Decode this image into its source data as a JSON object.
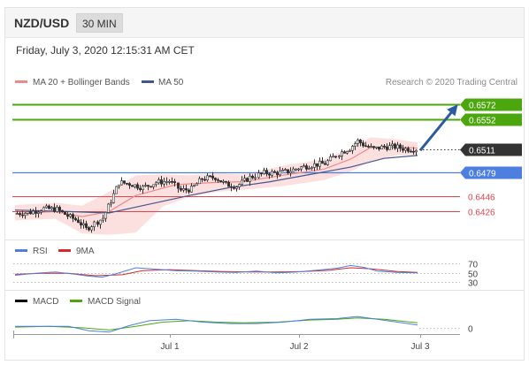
{
  "header": {
    "pair": "NZD/USD",
    "timeframe": "30 MIN"
  },
  "datetime": "Friday, July 3, 2020 12:15:31 AM CET",
  "legend": {
    "ma20_label": "MA 20 + Bollinger Bands",
    "ma50_label": "MA 50",
    "credit": "Research © 2020 Trading Central",
    "rsi_label": "RSI",
    "rsi_ma_label": "9MA",
    "macd_label": "MACD",
    "macd_signal_label": "MACD Signal"
  },
  "colors": {
    "resistance": "#4ca70f",
    "pivot": "#4d7fe0",
    "support": "#e0454d",
    "current": "#333333",
    "candle": "#333333",
    "ma20": "#f08a8a",
    "ma50": "#42568f",
    "band": "#fbdada",
    "arrow": "#2b5aa0"
  },
  "chart_data": [
    {
      "type": "candlestick",
      "series": "NZD/USD 30 MIN",
      "x_labels": [
        "Jul 1",
        "Jul 2",
        "Jul 3"
      ],
      "ylim": [
        0.6389,
        0.6593
      ],
      "levels": [
        {
          "value": 0.6572,
          "label": "0.6572",
          "kind": "resistance"
        },
        {
          "value": 0.6552,
          "label": "0.6552",
          "kind": "resistance"
        },
        {
          "value": 0.6511,
          "label": "0.6511",
          "kind": "current"
        },
        {
          "value": 0.6479,
          "label": "0.6479",
          "kind": "pivot"
        },
        {
          "value": 0.6446,
          "label": "0.6446",
          "kind": "support"
        },
        {
          "value": 0.6426,
          "label": "0.6426",
          "kind": "support"
        }
      ],
      "price_path": [
        [
          0,
          0.6422
        ],
        [
          12,
          0.6424
        ],
        [
          22,
          0.6429
        ],
        [
          32,
          0.6428
        ],
        [
          40,
          0.6419
        ],
        [
          48,
          0.6412
        ],
        [
          54,
          0.6401
        ],
        [
          60,
          0.6409
        ],
        [
          66,
          0.6416
        ],
        [
          72,
          0.644
        ],
        [
          78,
          0.6465
        ],
        [
          86,
          0.6463
        ],
        [
          96,
          0.6458
        ],
        [
          106,
          0.6465
        ],
        [
          116,
          0.6467
        ],
        [
          124,
          0.6454
        ],
        [
          132,
          0.6456
        ],
        [
          140,
          0.647
        ],
        [
          150,
          0.6472
        ],
        [
          158,
          0.6462
        ],
        [
          166,
          0.646
        ],
        [
          176,
          0.6472
        ],
        [
          186,
          0.6478
        ],
        [
          194,
          0.6478
        ],
        [
          204,
          0.648
        ],
        [
          212,
          0.6485
        ],
        [
          222,
          0.6489
        ],
        [
          232,
          0.6491
        ],
        [
          242,
          0.6505
        ],
        [
          250,
          0.6512
        ],
        [
          256,
          0.6522
        ],
        [
          262,
          0.6515
        ],
        [
          268,
          0.6511
        ],
        [
          276,
          0.6514
        ],
        [
          284,
          0.6514
        ],
        [
          292,
          0.6511
        ],
        [
          300,
          0.6511
        ]
      ],
      "ma20_path": [
        [
          0,
          0.6422
        ],
        [
          30,
          0.6425
        ],
        [
          50,
          0.6418
        ],
        [
          70,
          0.6425
        ],
        [
          90,
          0.6447
        ],
        [
          120,
          0.6462
        ],
        [
          150,
          0.6465
        ],
        [
          170,
          0.6466
        ],
        [
          200,
          0.6475
        ],
        [
          230,
          0.6483
        ],
        [
          250,
          0.6497
        ],
        [
          265,
          0.6513
        ],
        [
          285,
          0.6514
        ],
        [
          300,
          0.6512
        ]
      ],
      "ma50_path": [
        [
          0,
          0.6427
        ],
        [
          40,
          0.6425
        ],
        [
          70,
          0.6423
        ],
        [
          100,
          0.6435
        ],
        [
          130,
          0.6447
        ],
        [
          160,
          0.6458
        ],
        [
          190,
          0.6466
        ],
        [
          220,
          0.6476
        ],
        [
          250,
          0.6486
        ],
        [
          275,
          0.6498
        ],
        [
          300,
          0.6502
        ]
      ],
      "bands": {
        "upper": [
          [
            0,
            0.6434
          ],
          [
            30,
            0.6437
          ],
          [
            50,
            0.6433
          ],
          [
            70,
            0.6452
          ],
          [
            90,
            0.6475
          ],
          [
            110,
            0.6476
          ],
          [
            130,
            0.6475
          ],
          [
            150,
            0.6477
          ],
          [
            170,
            0.6476
          ],
          [
            200,
            0.6488
          ],
          [
            230,
            0.6497
          ],
          [
            250,
            0.6512
          ],
          [
            265,
            0.6527
          ],
          [
            285,
            0.6524
          ],
          [
            300,
            0.652
          ]
        ],
        "lower": [
          [
            0,
            0.6413
          ],
          [
            30,
            0.6415
          ],
          [
            50,
            0.6395
          ],
          [
            70,
            0.6393
          ],
          [
            90,
            0.6396
          ],
          [
            110,
            0.6432
          ],
          [
            130,
            0.6445
          ],
          [
            150,
            0.6452
          ],
          [
            170,
            0.6455
          ],
          [
            200,
            0.646
          ],
          [
            230,
            0.6468
          ],
          [
            250,
            0.648
          ],
          [
            265,
            0.6494
          ],
          [
            285,
            0.6502
          ],
          [
            300,
            0.6503
          ]
        ]
      },
      "forecast_arrow": {
        "from": [
          302,
          0.6509
        ],
        "to": [
          330,
          0.6572
        ]
      }
    },
    {
      "type": "line",
      "series": "RSI",
      "ylim": [
        25,
        80
      ],
      "ticks": [
        "70",
        "50",
        "30"
      ],
      "reference_lines": [
        70,
        50,
        30
      ],
      "rsi": [
        [
          0,
          45
        ],
        [
          15,
          49
        ],
        [
          30,
          52
        ],
        [
          45,
          47
        ],
        [
          55,
          43
        ],
        [
          65,
          41
        ],
        [
          75,
          48
        ],
        [
          90,
          61
        ],
        [
          105,
          58
        ],
        [
          120,
          55
        ],
        [
          135,
          54
        ],
        [
          150,
          52
        ],
        [
          165,
          51
        ],
        [
          180,
          54
        ],
        [
          195,
          50
        ],
        [
          210,
          52
        ],
        [
          225,
          56
        ],
        [
          240,
          60
        ],
        [
          250,
          66
        ],
        [
          260,
          62
        ],
        [
          270,
          54
        ],
        [
          285,
          51
        ],
        [
          300,
          50
        ]
      ],
      "ma9": [
        [
          0,
          47
        ],
        [
          20,
          49
        ],
        [
          40,
          49
        ],
        [
          60,
          44
        ],
        [
          80,
          46
        ],
        [
          95,
          55
        ],
        [
          115,
          57
        ],
        [
          135,
          55
        ],
        [
          155,
          53
        ],
        [
          175,
          52
        ],
        [
          195,
          52
        ],
        [
          215,
          53
        ],
        [
          235,
          56
        ],
        [
          250,
          61
        ],
        [
          265,
          59
        ],
        [
          285,
          53
        ],
        [
          300,
          51
        ]
      ]
    },
    {
      "type": "line",
      "series": "MACD",
      "ticks": [
        "0"
      ],
      "ylim": [
        -0.001,
        0.0026
      ],
      "macd": [
        [
          0,
          0.0002
        ],
        [
          20,
          0.0002
        ],
        [
          40,
          0.0002
        ],
        [
          55,
          -0.0004
        ],
        [
          70,
          -0.0006
        ],
        [
          85,
          0.0003
        ],
        [
          100,
          0.001
        ],
        [
          120,
          0.0012
        ],
        [
          140,
          0.0008
        ],
        [
          160,
          0.0006
        ],
        [
          180,
          0.0006
        ],
        [
          200,
          0.0008
        ],
        [
          220,
          0.0012
        ],
        [
          240,
          0.0013
        ],
        [
          255,
          0.0016
        ],
        [
          270,
          0.0012
        ],
        [
          285,
          0.0008
        ],
        [
          300,
          0.0004
        ]
      ],
      "signal": [
        [
          0,
          0.0001
        ],
        [
          25,
          0.0002
        ],
        [
          50,
          0.0
        ],
        [
          70,
          -0.0003
        ],
        [
          90,
          0.0002
        ],
        [
          110,
          0.0008
        ],
        [
          130,
          0.001
        ],
        [
          150,
          0.0008
        ],
        [
          170,
          0.0007
        ],
        [
          195,
          0.0008
        ],
        [
          220,
          0.0011
        ],
        [
          240,
          0.0012
        ],
        [
          255,
          0.0014
        ],
        [
          275,
          0.0012
        ],
        [
          300,
          0.0007
        ]
      ]
    }
  ]
}
